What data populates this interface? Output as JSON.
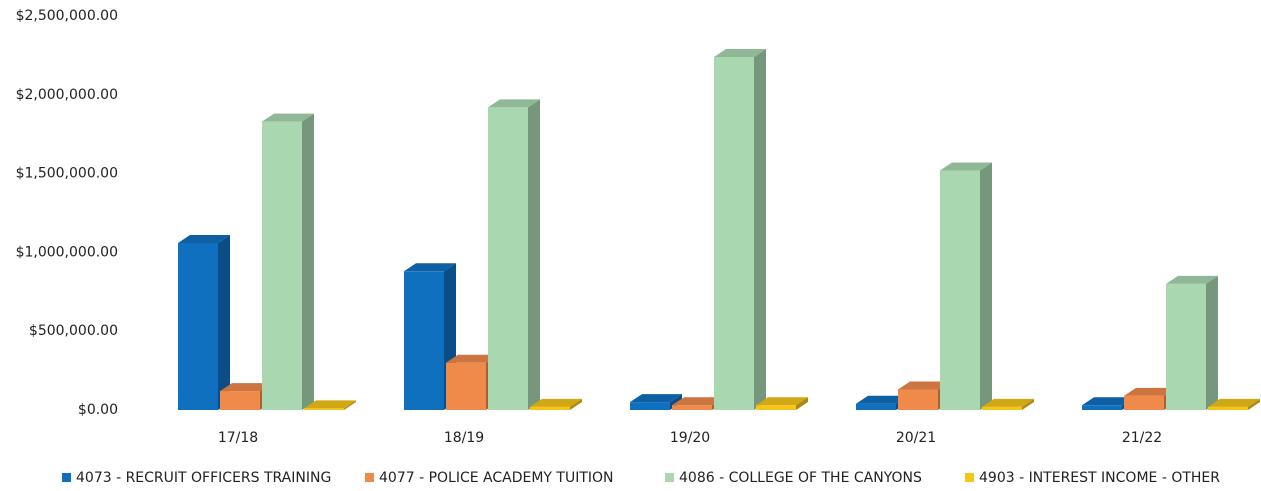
{
  "chart_data": {
    "type": "bar3d",
    "categories": [
      "17/18",
      "18/19",
      "19/20",
      "20/21",
      "21/22"
    ],
    "series": [
      {
        "name": "4073 - RECRUIT OFFICERS TRAINING",
        "color": "#1070c0",
        "values": [
          1060000,
          880000,
          50000,
          40000,
          30000
        ]
      },
      {
        "name": "4077 - POLICE ACADEMY TUITION",
        "color": "#f08a4b",
        "values": [
          120000,
          300000,
          30000,
          130000,
          90000
        ]
      },
      {
        "name": "4086 - COLLEGE OF THE CANYONS",
        "color": "#a9d8b0",
        "values": [
          1830000,
          1920000,
          2240000,
          1520000,
          800000
        ]
      },
      {
        "name": "4903 - INTEREST INCOME - OTHER",
        "color": "#f5c518",
        "values": [
          10000,
          20000,
          30000,
          20000,
          20000
        ]
      }
    ],
    "ylim": [
      0,
      2500000
    ],
    "yticks": [
      {
        "value": 0,
        "label": "$0.00"
      },
      {
        "value": 500000,
        "label": "$500,000.00"
      },
      {
        "value": 1000000,
        "label": "$1,000,000.00"
      },
      {
        "value": 1500000,
        "label": "$1,500,000.00"
      },
      {
        "value": 2000000,
        "label": "$2,000,000.00"
      },
      {
        "value": 2500000,
        "label": "$2,500,000.00"
      }
    ],
    "grid": false,
    "legend": "bottom"
  }
}
